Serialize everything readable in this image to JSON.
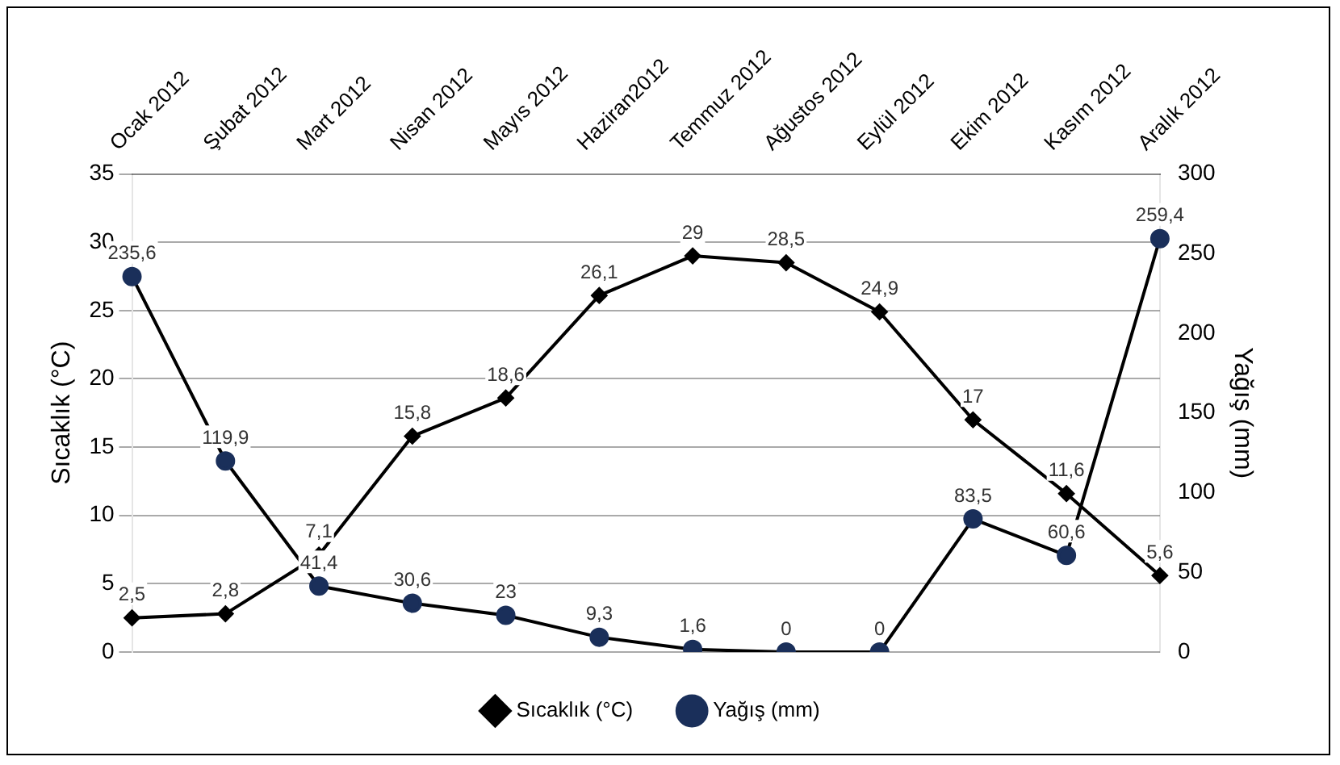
{
  "chart_data": {
    "type": "line",
    "categories": [
      "Ocak 2012",
      "Şubat 2012",
      "Mart 2012",
      "Nisan 2012",
      "Mayıs 2012",
      "Haziran2012",
      "Temmuz 2012",
      "Ağustos 2012",
      "Eylül 2012",
      "Ekim 2012",
      "Kasım 2012",
      "Aralık 2012"
    ],
    "series": [
      {
        "name": "Sıcaklık (°C)",
        "color": "#000000",
        "marker": "diamond",
        "values": [
          2.5,
          2.8,
          7.1,
          15.8,
          18.6,
          26.1,
          29,
          28.5,
          24.9,
          17,
          11.6,
          5.6
        ],
        "value_labels": [
          "2,5",
          "2,8",
          "7,1",
          "15,8",
          "18,6",
          "26,1",
          "29",
          "28,5",
          "24,9",
          "17",
          "11,6",
          "5,6"
        ]
      },
      {
        "name": "Yağış (mm)",
        "color": "#1a2f5a",
        "marker": "circle",
        "axis": "y2",
        "values": [
          235.6,
          119.9,
          41.4,
          30.6,
          23,
          9.3,
          1.6,
          0,
          0,
          83.5,
          60.6,
          259.4
        ],
        "value_labels": [
          "235,6",
          "119,9",
          "41,4",
          "30,6",
          "23",
          "9,3",
          "1,6",
          "0",
          "0",
          "83,5",
          "60,6",
          "259,4"
        ]
      }
    ],
    "ylabel": "Sıcaklık (°C)",
    "y2label": "Yağış (mm)",
    "ylim": [
      0,
      35
    ],
    "yticks": [
      0,
      5,
      10,
      15,
      20,
      25,
      30,
      35
    ],
    "y2lim": [
      0,
      300
    ],
    "y2ticks": [
      0,
      50,
      100,
      150,
      200,
      250,
      300
    ],
    "grid": "y",
    "legend": "bottom"
  }
}
